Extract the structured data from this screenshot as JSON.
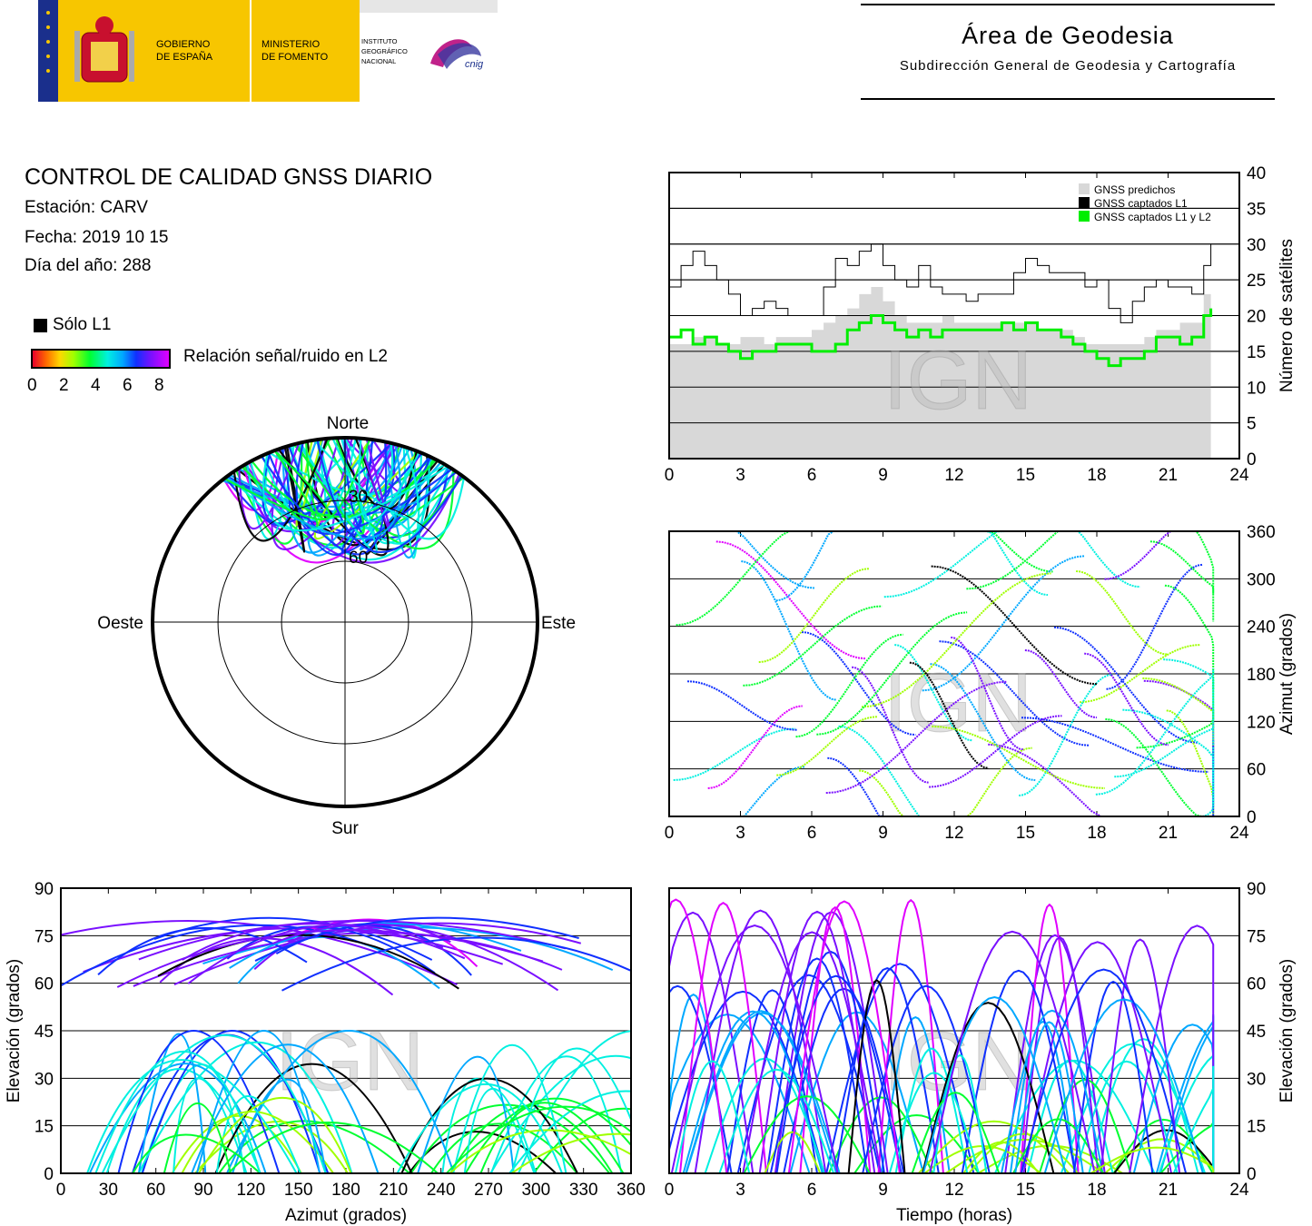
{
  "header": {
    "gov_line1": "GOBIERNO",
    "gov_line2": "DE ESPAÑA",
    "ministry_line1": "MINISTERIO",
    "ministry_line2": "DE FOMENTO",
    "ign_line1": "INSTITUTO",
    "ign_line2": "GEOGRÁFICO",
    "ign_line3": "NACIONAL",
    "cnig_logo_text": "cnig",
    "area_title": "Área de Geodesia",
    "area_subtitle": "Subdirección General de Geodesia y Cartografía"
  },
  "report": {
    "title": "CONTROL DE CALIDAD GNSS DIARIO",
    "station": "Estación: CARV",
    "date": "Fecha: 2019 10 15",
    "doy": "Día del año: 288"
  },
  "legend": {
    "l1_only": "Sólo L1",
    "snr_label": "Relación señal/ruido en L2",
    "snr_ticks": [
      "0",
      "2",
      "4",
      "6",
      "8"
    ]
  },
  "colors": {
    "predicted": "#d8d8d8",
    "l1": "#000000",
    "l1l2": "#00ee00",
    "snr_scale": [
      "#e8002a",
      "#ff6a00",
      "#ffd800",
      "#a0ff00",
      "#00ff30",
      "#00f0e0",
      "#00a8ff",
      "#1030ff",
      "#7a10ff",
      "#e000ff"
    ]
  },
  "watermark": "IGN",
  "chart_data": [
    {
      "type": "line",
      "id": "satellite-count",
      "legend": [
        "GNSS predichos",
        "GNSS captados L1",
        "GNSS captados L1 y L2"
      ],
      "legend_position": "top-right",
      "ylabel": "Número de satélites",
      "xlim": [
        0,
        24
      ],
      "ylim": [
        0,
        40
      ],
      "xticks": [
        0,
        3,
        6,
        9,
        12,
        15,
        18,
        21,
        24
      ],
      "yticks": [
        0,
        5,
        10,
        15,
        20,
        25,
        30,
        35,
        40
      ],
      "grid": "horizontal",
      "x": [
        0,
        0.5,
        1,
        1.5,
        2,
        2.5,
        3,
        3.5,
        4,
        4.5,
        5,
        5.5,
        6,
        6.5,
        7,
        7.5,
        8,
        8.5,
        9,
        9.5,
        10,
        10.5,
        11,
        11.5,
        12,
        12.5,
        13,
        13.5,
        14,
        14.5,
        15,
        15.5,
        16,
        16.5,
        17,
        17.5,
        18,
        18.5,
        19,
        19.5,
        20,
        20.5,
        21,
        21.5,
        22,
        22.5,
        22.8
      ],
      "series": [
        {
          "name": "GNSS predichos",
          "values": [
            16,
            16,
            17,
            17,
            16,
            16,
            17,
            17,
            16,
            17,
            17,
            17,
            18,
            19,
            20,
            21,
            23,
            24,
            22,
            20,
            19,
            19,
            19,
            20,
            19,
            19,
            19,
            19,
            19,
            19,
            19,
            18,
            18,
            18,
            17,
            16,
            16,
            16,
            16,
            16,
            17,
            18,
            18,
            19,
            19,
            23,
            23
          ]
        },
        {
          "name": "GNSS captados L1",
          "values": [
            24,
            27,
            29,
            27,
            25,
            23,
            20,
            21,
            22,
            21,
            20,
            20,
            20,
            24,
            28,
            27,
            29,
            30,
            27,
            25,
            24,
            27,
            24,
            23,
            23,
            22,
            23,
            23,
            23,
            26,
            28,
            27,
            26,
            26,
            26,
            24,
            25,
            21,
            19,
            22,
            24,
            25,
            24,
            24,
            23,
            27,
            30
          ]
        },
        {
          "name": "GNSS captados L1 y L2",
          "values": [
            17,
            18,
            16,
            17,
            16,
            15,
            14,
            15,
            15,
            16,
            16,
            16,
            15,
            15,
            16,
            18,
            19,
            20,
            19,
            18,
            17,
            18,
            17,
            18,
            18,
            18,
            18,
            18,
            19,
            18,
            19,
            18,
            18,
            17,
            16,
            15,
            14,
            13,
            14,
            14,
            15,
            17,
            17,
            16,
            17,
            20,
            21
          ]
        }
      ]
    },
    {
      "type": "scatter",
      "id": "sky-plot",
      "axis_labels": {
        "north": "Norte",
        "south": "Sur",
        "east": "Este",
        "west": "Oeste"
      },
      "elevation_rings": [
        30,
        60
      ],
      "description_series": "satellite tracks colored by L2 SNR"
    },
    {
      "type": "scatter",
      "id": "azimuth-vs-time",
      "ylabel": "Azimut (grados)",
      "xlim": [
        0,
        24
      ],
      "ylim": [
        0,
        360
      ],
      "xticks": [
        0,
        3,
        6,
        9,
        12,
        15,
        18,
        21,
        24
      ],
      "yticks": [
        0,
        60,
        120,
        180,
        240,
        300,
        360
      ],
      "grid": "horizontal"
    },
    {
      "type": "scatter",
      "id": "elevation-vs-azimuth",
      "xlabel": "Azimut (grados)",
      "ylabel": "Elevación (grados)",
      "xlim": [
        0,
        360
      ],
      "ylim": [
        0,
        90
      ],
      "xticks": [
        0,
        30,
        60,
        90,
        120,
        150,
        180,
        210,
        240,
        270,
        300,
        330,
        360
      ],
      "yticks": [
        0,
        15,
        30,
        45,
        60,
        75,
        90
      ],
      "grid": "horizontal"
    },
    {
      "type": "scatter",
      "id": "elevation-vs-time",
      "xlabel": "Tiempo (horas)",
      "ylabel": "Elevación (grados)",
      "xlim": [
        0,
        24
      ],
      "ylim": [
        0,
        90
      ],
      "xticks": [
        0,
        3,
        6,
        9,
        12,
        15,
        18,
        21,
        24
      ],
      "yticks": [
        0,
        15,
        30,
        45,
        60,
        75,
        90
      ],
      "grid": "horizontal"
    }
  ]
}
